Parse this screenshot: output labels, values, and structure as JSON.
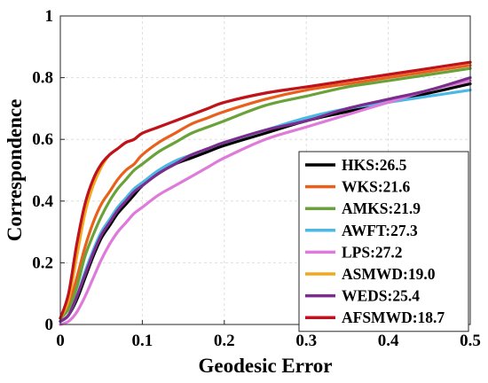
{
  "chart_data": {
    "type": "line",
    "xlabel": "Geodesic Error",
    "ylabel": "Correspondence",
    "xlim": [
      0,
      0.5
    ],
    "ylim": [
      0,
      1
    ],
    "x_ticks": [
      "0",
      "0.1",
      "0.2",
      "0.3",
      "0.4",
      "0.5"
    ],
    "y_ticks": [
      "0",
      "0.2",
      "0.4",
      "0.6",
      "0.8",
      "1"
    ],
    "grid": true,
    "legend_position": "bottom-right",
    "x": [
      0,
      0.01,
      0.02,
      0.03,
      0.04,
      0.05,
      0.06,
      0.07,
      0.08,
      0.09,
      0.1,
      0.12,
      0.14,
      0.16,
      0.18,
      0.2,
      0.25,
      0.3,
      0.35,
      0.4,
      0.45,
      0.5
    ],
    "series": [
      {
        "name": "HKS:26.5",
        "color": "#000000",
        "values": [
          0.01,
          0.03,
          0.08,
          0.15,
          0.22,
          0.28,
          0.32,
          0.36,
          0.39,
          0.42,
          0.45,
          0.49,
          0.52,
          0.54,
          0.56,
          0.58,
          0.62,
          0.66,
          0.69,
          0.72,
          0.75,
          0.78
        ]
      },
      {
        "name": "WKS:21.6",
        "color": "#e8601c",
        "values": [
          0.02,
          0.06,
          0.15,
          0.25,
          0.33,
          0.39,
          0.43,
          0.47,
          0.5,
          0.52,
          0.55,
          0.59,
          0.62,
          0.65,
          0.67,
          0.69,
          0.73,
          0.76,
          0.78,
          0.8,
          0.82,
          0.84
        ]
      },
      {
        "name": "AMKS:21.9",
        "color": "#6aa23a",
        "values": [
          0.02,
          0.05,
          0.12,
          0.22,
          0.29,
          0.35,
          0.4,
          0.44,
          0.47,
          0.5,
          0.52,
          0.56,
          0.59,
          0.62,
          0.64,
          0.66,
          0.71,
          0.74,
          0.77,
          0.79,
          0.81,
          0.83
        ]
      },
      {
        "name": "AWFT:27.3",
        "color": "#4cb8e6",
        "values": [
          0.01,
          0.03,
          0.09,
          0.17,
          0.24,
          0.3,
          0.34,
          0.38,
          0.41,
          0.44,
          0.46,
          0.5,
          0.53,
          0.55,
          0.57,
          0.59,
          0.63,
          0.67,
          0.7,
          0.72,
          0.74,
          0.76
        ]
      },
      {
        "name": "LPS:27.2",
        "color": "#de7ad9",
        "values": [
          0.0,
          0.01,
          0.04,
          0.09,
          0.15,
          0.21,
          0.26,
          0.3,
          0.33,
          0.36,
          0.38,
          0.42,
          0.45,
          0.48,
          0.51,
          0.54,
          0.6,
          0.64,
          0.68,
          0.72,
          0.76,
          0.79
        ]
      },
      {
        "name": "ASMWD:19.0",
        "color": "#f0a91c",
        "values": [
          0.02,
          0.08,
          0.22,
          0.36,
          0.45,
          0.51,
          0.55,
          0.57,
          0.59,
          0.6,
          0.62,
          0.64,
          0.66,
          0.68,
          0.7,
          0.72,
          0.75,
          0.77,
          0.79,
          0.81,
          0.83,
          0.85
        ]
      },
      {
        "name": "WEDS:25.4",
        "color": "#7b2d8e",
        "values": [
          0.01,
          0.03,
          0.09,
          0.16,
          0.23,
          0.29,
          0.33,
          0.37,
          0.4,
          0.43,
          0.45,
          0.49,
          0.52,
          0.55,
          0.57,
          0.59,
          0.63,
          0.66,
          0.7,
          0.73,
          0.76,
          0.8
        ]
      },
      {
        "name": "AFSMWD:18.7",
        "color": "#c0111f",
        "values": [
          0.02,
          0.1,
          0.26,
          0.39,
          0.47,
          0.52,
          0.55,
          0.57,
          0.59,
          0.6,
          0.62,
          0.64,
          0.66,
          0.68,
          0.7,
          0.72,
          0.75,
          0.77,
          0.79,
          0.81,
          0.83,
          0.85
        ]
      }
    ]
  }
}
